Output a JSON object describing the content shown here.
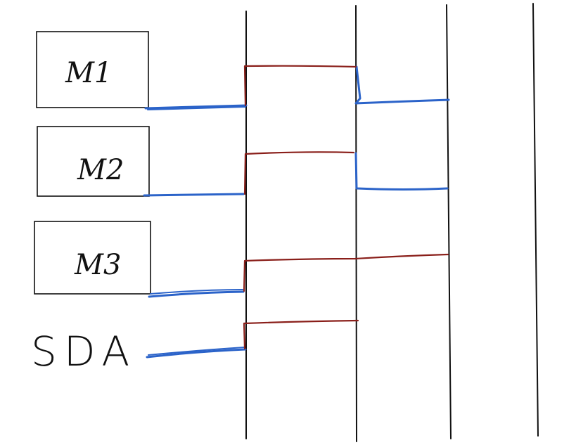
{
  "labels": {
    "m1": "M1",
    "m2": "M2",
    "m3": "M3",
    "sda": "SDA"
  },
  "colors": {
    "ink": "#111111",
    "blue": "#2b63c9",
    "red": "#8a1f1a"
  }
}
